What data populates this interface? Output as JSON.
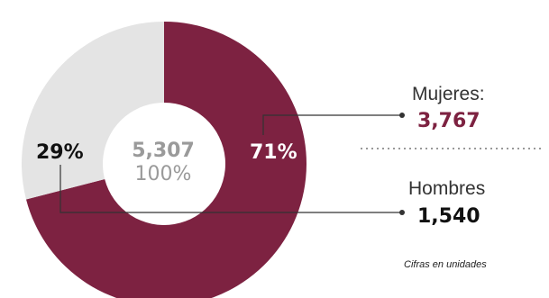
{
  "chart_data": {
    "type": "pie",
    "donut": true,
    "title": "",
    "total": {
      "value": "5,307",
      "percent": "100%"
    },
    "slices": [
      {
        "name": "Mujeres:",
        "value": 3767,
        "value_label": "3,767",
        "percent": 71,
        "percent_label": "71%",
        "color": "#7d2241",
        "label_color": "#ffffff",
        "value_color": "#7d2241"
      },
      {
        "name": "Hombres",
        "value": 1540,
        "value_label": "1,540",
        "percent": 29,
        "percent_label": "29%",
        "color": "#e4e4e4",
        "label_color": "#111111",
        "value_color": "#111111"
      }
    ],
    "start_angle_deg": 0,
    "footnote": "Cifras en unidades"
  },
  "colors": {
    "connector": "#333333",
    "divider": "#999999"
  }
}
